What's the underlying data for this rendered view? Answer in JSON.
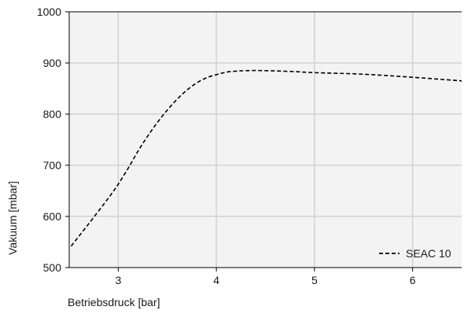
{
  "chart_data": {
    "type": "line",
    "title": "",
    "xlabel": "Betriebsdruck [bar]",
    "ylabel": "Vakuum [mbar]",
    "xlim": [
      2.5,
      6.5
    ],
    "ylim": [
      500,
      1000
    ],
    "xticks": [
      3,
      4,
      5,
      6
    ],
    "yticks": [
      500,
      600,
      700,
      800,
      900,
      1000
    ],
    "grid": true,
    "legend_position": "bottom-right",
    "series": [
      {
        "name": "SEAC 10",
        "line_style": "dashed",
        "color": "#000000",
        "x": [
          2.52,
          2.7,
          2.9,
          3.0,
          3.1,
          3.2,
          3.3,
          3.4,
          3.5,
          3.6,
          3.7,
          3.8,
          3.9,
          4.0,
          4.1,
          4.2,
          4.3,
          4.5,
          4.8,
          5.0,
          5.5,
          6.0,
          6.5
        ],
        "y": [
          542,
          586,
          636,
          663,
          694,
          727,
          757,
          784,
          808,
          829,
          847,
          861,
          871,
          877,
          882,
          884,
          885,
          885,
          883,
          881,
          878,
          872,
          865
        ]
      }
    ]
  }
}
